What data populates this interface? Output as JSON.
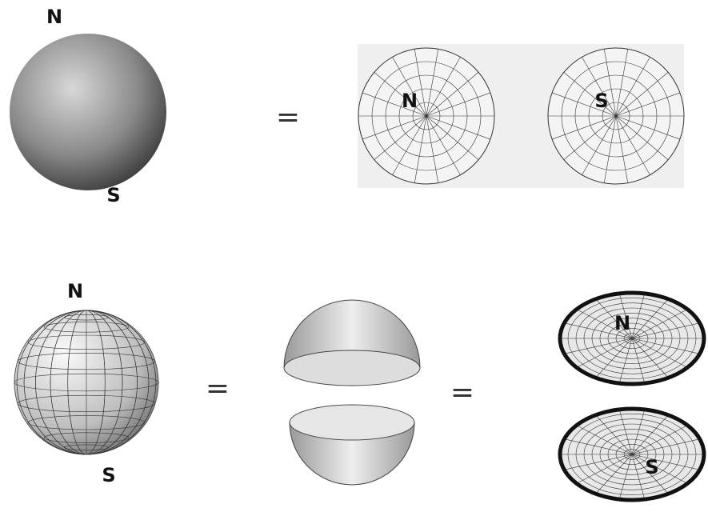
{
  "row1": {
    "globe": {
      "north_label": "N",
      "south_label": "S"
    },
    "equals": "=",
    "polar_maps": {
      "north_label": "N",
      "south_label": "S"
    }
  },
  "row2": {
    "globe": {
      "north_label": "N",
      "south_label": "S"
    },
    "equals_1": "=",
    "equals_2": "=",
    "disks": {
      "north_label": "N",
      "south_label": "S"
    }
  }
}
